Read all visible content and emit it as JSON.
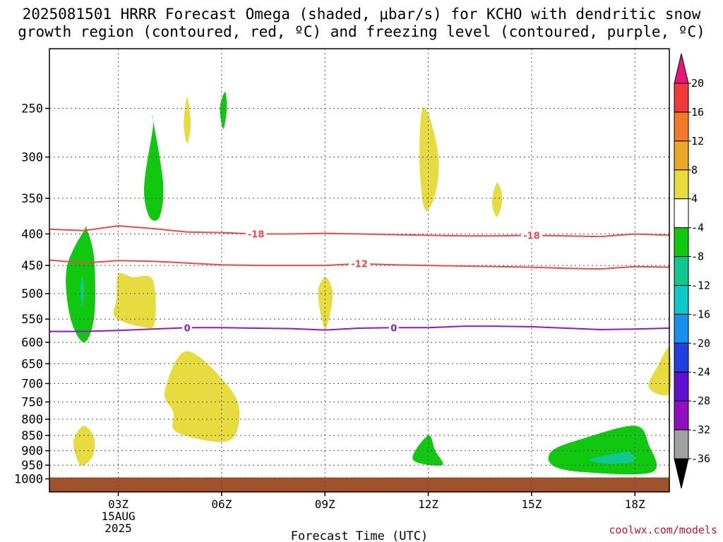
{
  "title": {
    "line1": "2025081501 HRRR Forecast Omega (shaded, μbar/s) for KCHO with dendritic snow",
    "line2": "growth region (contoured, red, ºC) and freezing level (contoured, purple, ºC)"
  },
  "credit": "coolwx.com/models",
  "chart_data": {
    "type": "contour",
    "title": "2025081501 HRRR Forecast Omega (shaded, μbar/s) for KCHO with dendritic snow growth region (contoured, red, ºC) and freezing level (contoured, purple, ºC)",
    "xlabel": "Forecast Time (UTC)",
    "ylabel": "",
    "x_unit": "hours since 2025-08-15 00Z",
    "xlim": [
      1,
      19
    ],
    "ylim": [
      1050,
      200
    ],
    "y_scale": "log-pressure",
    "grid": true,
    "x_ticks": [
      {
        "value": 3,
        "label": "03Z",
        "sub1": "15AUG",
        "sub2": "2025"
      },
      {
        "value": 6,
        "label": "06Z"
      },
      {
        "value": 9,
        "label": "09Z"
      },
      {
        "value": 12,
        "label": "12Z"
      },
      {
        "value": 15,
        "label": "15Z"
      },
      {
        "value": 18,
        "label": "18Z"
      }
    ],
    "y_ticks": [
      250,
      300,
      350,
      400,
      450,
      500,
      550,
      600,
      650,
      700,
      750,
      800,
      850,
      900,
      950,
      1000
    ],
    "colorbar": {
      "labels": [
        "20",
        "16",
        "12",
        "8",
        "4",
        "-4",
        "-8",
        "-12",
        "-16",
        "-20",
        "-24",
        "-28",
        "-32",
        "-36"
      ],
      "colors": [
        "#e8147a",
        "#f03a3a",
        "#f07a28",
        "#e8a828",
        "#e6dc40",
        "#ffffff",
        "#10c810",
        "#10c890",
        "#10c8c8",
        "#1890f0",
        "#2040e0",
        "#6010d0",
        "#9010c0",
        "#a0a0a0",
        "#000000"
      ]
    },
    "omega_regions": [
      {
        "name": "green",
        "value": -6,
        "color": "#10c810",
        "points": [
          [
            4.0,
            270
          ],
          [
            3.75,
            335
          ],
          [
            3.9,
            375
          ],
          [
            4.2,
            375
          ],
          [
            4.3,
            330
          ],
          [
            4.0,
            260
          ]
        ]
      },
      {
        "name": "yellow",
        "value": 5,
        "color": "#e6dc40",
        "points": [
          [
            5.0,
            240
          ],
          [
            4.9,
            265
          ],
          [
            5.0,
            285
          ],
          [
            5.1,
            265
          ]
        ]
      },
      {
        "name": "green",
        "value": -6,
        "color": "#10c810",
        "points": [
          [
            6.1,
            235
          ],
          [
            5.95,
            250
          ],
          [
            6.05,
            270
          ],
          [
            6.15,
            250
          ]
        ]
      },
      {
        "name": "green",
        "value": -6,
        "color": "#10c810",
        "points": [
          [
            2.0,
            395
          ],
          [
            1.5,
            455
          ],
          [
            1.6,
            545
          ],
          [
            2.0,
            600
          ],
          [
            2.3,
            545
          ],
          [
            2.3,
            440
          ],
          [
            2.1,
            395
          ]
        ]
      },
      {
        "name": "teal",
        "value": -9,
        "color": "#10c890",
        "points": [
          [
            1.95,
            470
          ],
          [
            1.9,
            495
          ],
          [
            1.95,
            525
          ],
          [
            2.0,
            495
          ]
        ]
      },
      {
        "name": "yellow",
        "value": 5,
        "color": "#e6dc40",
        "points": [
          [
            3.0,
            465
          ],
          [
            2.95,
            510
          ],
          [
            2.9,
            545
          ],
          [
            3.6,
            565
          ],
          [
            4.05,
            560
          ],
          [
            4.0,
            475
          ],
          [
            3.4,
            470
          ]
        ]
      },
      {
        "name": "yellow",
        "value": 5,
        "color": "#e6dc40",
        "points": [
          [
            9.0,
            470
          ],
          [
            8.8,
            500
          ],
          [
            9.0,
            570
          ],
          [
            9.2,
            520
          ],
          [
            9.2,
            490
          ]
        ]
      },
      {
        "name": "yellow",
        "value": 5,
        "color": "#e6dc40",
        "points": [
          [
            11.8,
            255
          ],
          [
            11.75,
            310
          ],
          [
            11.9,
            365
          ],
          [
            12.2,
            345
          ],
          [
            12.3,
            300
          ],
          [
            12.0,
            255
          ]
        ]
      },
      {
        "name": "yellow",
        "value": 5,
        "color": "#e6dc40",
        "points": [
          [
            14.0,
            330
          ],
          [
            13.85,
            355
          ],
          [
            14.0,
            375
          ],
          [
            14.15,
            350
          ]
        ]
      },
      {
        "name": "yellow",
        "value": 5,
        "color": "#e6dc40",
        "points": [
          [
            5.0,
            620
          ],
          [
            4.35,
            720
          ],
          [
            4.6,
            780
          ],
          [
            4.7,
            840
          ],
          [
            6.1,
            870
          ],
          [
            6.5,
            810
          ],
          [
            6.3,
            720
          ]
        ]
      },
      {
        "name": "yellow",
        "value": 5,
        "color": "#e6dc40",
        "points": [
          [
            19.0,
            615
          ],
          [
            18.7,
            650
          ],
          [
            18.4,
            710
          ],
          [
            19.0,
            725
          ]
        ]
      },
      {
        "name": "yellow",
        "value": 5,
        "color": "#e6dc40",
        "points": [
          [
            2.0,
            820
          ],
          [
            1.7,
            870
          ],
          [
            1.9,
            950
          ],
          [
            2.25,
            920
          ],
          [
            2.3,
            860
          ]
        ]
      },
      {
        "name": "green",
        "value": -6,
        "color": "#10c810",
        "points": [
          [
            12.0,
            850
          ],
          [
            11.55,
            930
          ],
          [
            12.4,
            950
          ],
          [
            12.2,
            900
          ]
        ]
      },
      {
        "name": "green",
        "value": -6,
        "color": "#10c810",
        "points": [
          [
            18.0,
            820
          ],
          [
            16.5,
            860
          ],
          [
            15.6,
            900
          ],
          [
            15.6,
            950
          ],
          [
            16.5,
            975
          ],
          [
            18.5,
            975
          ],
          [
            18.4,
            880
          ]
        ]
      },
      {
        "name": "teal",
        "value": -9,
        "color": "#10c890",
        "points": [
          [
            17.7,
            905
          ],
          [
            16.7,
            930
          ],
          [
            17.3,
            945
          ],
          [
            18.0,
            935
          ],
          [
            17.9,
            910
          ]
        ]
      }
    ],
    "contours": [
      {
        "name": "dendritic -18°C",
        "label": "-18",
        "color": "#f04848",
        "label_at": [
          [
            7.0,
            -18
          ],
          [
            15.0,
            -18
          ]
        ],
        "points": [
          [
            1.0,
            393
          ],
          [
            2.0,
            395
          ],
          [
            3.0,
            388
          ],
          [
            4.0,
            392
          ],
          [
            5.0,
            397
          ],
          [
            6.0,
            398
          ],
          [
            7.0,
            400
          ],
          [
            8.0,
            400
          ],
          [
            9.0,
            399
          ],
          [
            10.0,
            400
          ],
          [
            11.0,
            401
          ],
          [
            12.0,
            402
          ],
          [
            13.0,
            403
          ],
          [
            14.0,
            403
          ],
          [
            15.0,
            402
          ],
          [
            16.0,
            403
          ],
          [
            17.0,
            404
          ],
          [
            18.0,
            400
          ],
          [
            19.0,
            402
          ]
        ]
      },
      {
        "name": "dendritic -12°C",
        "label": "-12",
        "color": "#f04848",
        "label_at": [
          [
            10.0,
            -12
          ]
        ],
        "points": [
          [
            1.0,
            441
          ],
          [
            2.0,
            446
          ],
          [
            3.0,
            442
          ],
          [
            4.0,
            443
          ],
          [
            5.0,
            446
          ],
          [
            6.0,
            449
          ],
          [
            7.0,
            450
          ],
          [
            8.0,
            450
          ],
          [
            9.0,
            450
          ],
          [
            10.0,
            447
          ],
          [
            11.0,
            449
          ],
          [
            12.0,
            450
          ],
          [
            13.0,
            451
          ],
          [
            14.0,
            452
          ],
          [
            15.0,
            453
          ],
          [
            16.0,
            455
          ],
          [
            17.0,
            456
          ],
          [
            18.0,
            452
          ],
          [
            19.0,
            453
          ]
        ]
      },
      {
        "name": "freezing level 0°C",
        "label": "0",
        "color": "#9018c8",
        "label_at": [
          [
            5.0,
            0
          ],
          [
            11.0,
            0
          ]
        ],
        "points": [
          [
            1.0,
            576
          ],
          [
            2.0,
            576
          ],
          [
            3.0,
            574
          ],
          [
            4.0,
            571
          ],
          [
            5.0,
            568
          ],
          [
            6.0,
            568
          ],
          [
            7.0,
            569
          ],
          [
            8.0,
            570
          ],
          [
            9.0,
            573
          ],
          [
            10.0,
            569
          ],
          [
            11.0,
            568
          ],
          [
            12.0,
            568
          ],
          [
            13.0,
            565
          ],
          [
            14.0,
            565
          ],
          [
            15.0,
            566
          ],
          [
            16.0,
            569
          ],
          [
            17.0,
            572
          ],
          [
            18.0,
            571
          ],
          [
            19.0,
            569
          ]
        ]
      }
    ],
    "ground_pressure": 1000
  }
}
